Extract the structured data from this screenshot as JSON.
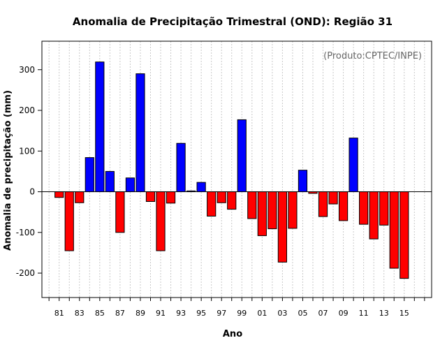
{
  "chart_data": {
    "type": "bar",
    "title": "Anomalia de Precipitação Trimestral (OND): Região 31",
    "xlabel": "Ano",
    "ylabel": "Anomalia de precipitação (mm)",
    "annotation": "(Produto:CPTEC/INPE)",
    "ylim": [
      -260,
      370
    ],
    "yticks": [
      -200,
      -100,
      0,
      100,
      200,
      300
    ],
    "xlim": [
      1979.3,
      2017.7
    ],
    "xtick_labels": [
      "81",
      "83",
      "85",
      "87",
      "89",
      "91",
      "93",
      "95",
      "97",
      "99",
      "01",
      "03",
      "05",
      "07",
      "09",
      "11",
      "13",
      "15"
    ],
    "positive_color": "#0000ff",
    "negative_color": "#ff0000",
    "years": [
      1981,
      1982,
      1983,
      1984,
      1985,
      1986,
      1987,
      1988,
      1989,
      1990,
      1991,
      1992,
      1993,
      1994,
      1995,
      1996,
      1997,
      1998,
      1999,
      2000,
      2001,
      2002,
      2003,
      2004,
      2005,
      2006,
      2007,
      2008,
      2009,
      2010,
      2011,
      2012,
      2013,
      2014,
      2015
    ],
    "values": [
      -14,
      -145,
      -27,
      84,
      319,
      50,
      -100,
      34,
      290,
      -24,
      -145,
      -28,
      119,
      2,
      23,
      -60,
      -27,
      -43,
      177,
      -66,
      -108,
      -91,
      -173,
      -90,
      53,
      -4,
      -61,
      -30,
      -71,
      132,
      -80,
      -116,
      -82,
      -188,
      -213
    ]
  }
}
